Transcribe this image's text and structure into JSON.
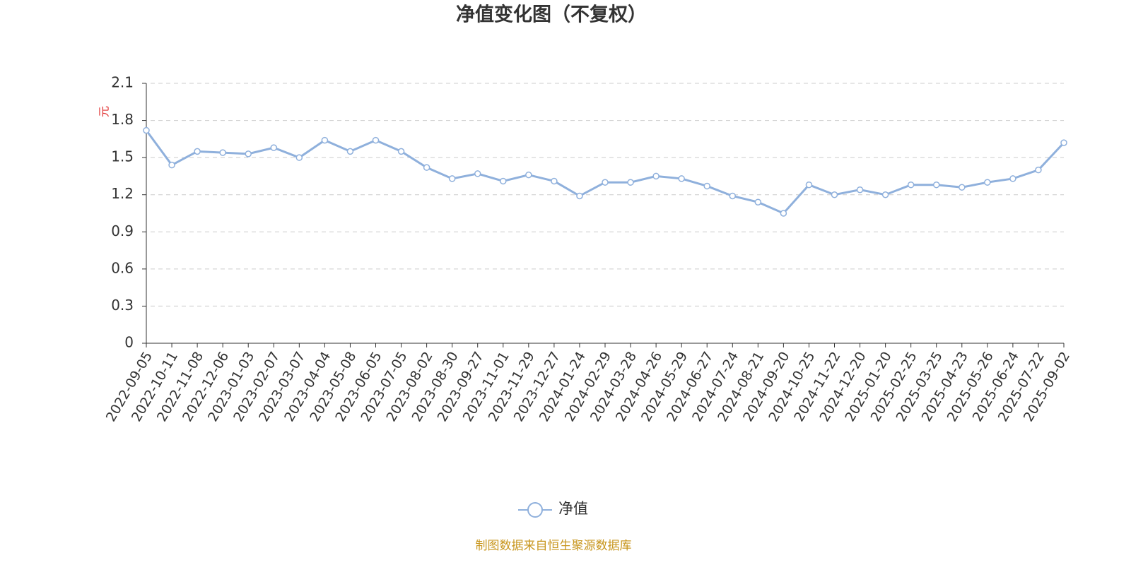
{
  "chart_data": {
    "type": "line",
    "title": "净值变化图（不复权）",
    "y_label": "元",
    "source": "制图数据来自恒生聚源数据库",
    "categories": [
      "2022-09-05",
      "2022-10-11",
      "2022-11-08",
      "2022-12-06",
      "2023-01-03",
      "2023-02-07",
      "2023-03-07",
      "2023-04-04",
      "2023-05-08",
      "2023-06-05",
      "2023-07-05",
      "2023-08-02",
      "2023-08-30",
      "2023-09-27",
      "2023-11-01",
      "2023-11-29",
      "2023-12-27",
      "2024-01-24",
      "2024-02-29",
      "2024-03-28",
      "2024-04-26",
      "2024-05-29",
      "2024-06-27",
      "2024-07-24",
      "2024-08-21",
      "2024-09-20",
      "2024-10-25",
      "2024-11-22",
      "2024-12-20",
      "2025-01-20",
      "2025-02-25",
      "2025-03-25",
      "2025-04-23",
      "2025-05-26",
      "2025-06-24",
      "2025-07-22",
      "2025-09-02"
    ],
    "series": [
      {
        "name": "净值",
        "color": "#8fb0dc",
        "values": [
          1.72,
          1.44,
          1.55,
          1.54,
          1.53,
          1.58,
          1.5,
          1.64,
          1.55,
          1.64,
          1.55,
          1.42,
          1.33,
          1.37,
          1.31,
          1.36,
          1.31,
          1.19,
          1.3,
          1.3,
          1.35,
          1.33,
          1.27,
          1.19,
          1.14,
          1.05,
          1.28,
          1.2,
          1.24,
          1.2,
          1.28,
          1.28,
          1.26,
          1.3,
          1.33,
          1.4,
          1.62
        ]
      }
    ],
    "ylim": [
      0,
      2.1
    ],
    "yticks": [
      0,
      0.3,
      0.6,
      0.9,
      1.2,
      1.5,
      1.8,
      2.1
    ],
    "grid": true
  }
}
